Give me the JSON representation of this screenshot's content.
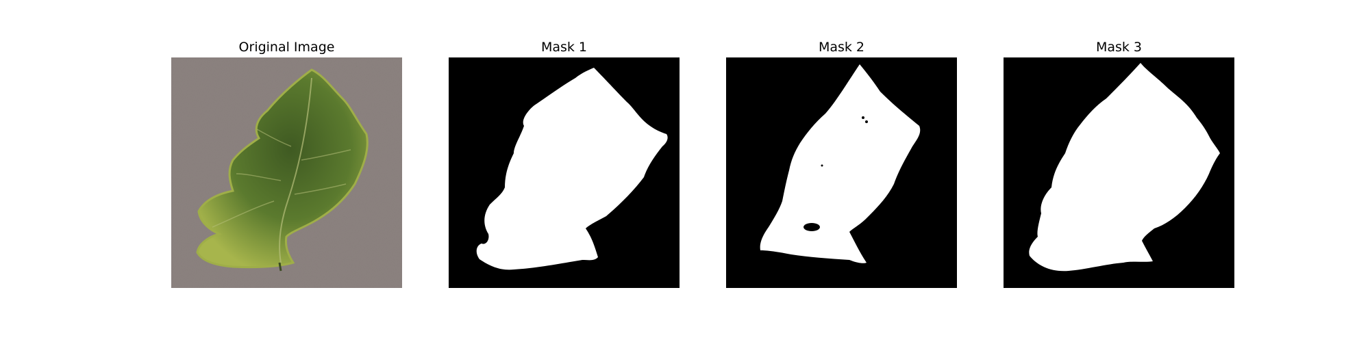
{
  "figure": {
    "panels": [
      {
        "title": "Original Image",
        "kind": "photo"
      },
      {
        "title": "Mask 1",
        "kind": "mask"
      },
      {
        "title": "Mask 2",
        "kind": "mask"
      },
      {
        "title": "Mask 3",
        "kind": "mask"
      }
    ]
  },
  "colors": {
    "background": "#8f8683",
    "leaf_dark": "#4e6b2c",
    "leaf_light": "#9fb24a",
    "mask_fg": "#ffffff",
    "mask_bg": "#000000"
  }
}
